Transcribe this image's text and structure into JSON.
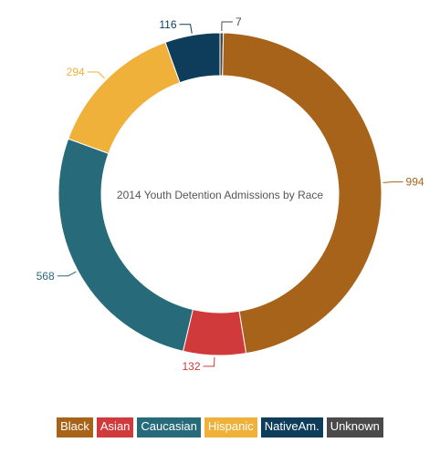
{
  "chart_data": {
    "type": "pie",
    "donut": true,
    "title": "2014 Youth Detention Admissions by Race",
    "slices": [
      {
        "label": "Unknown",
        "value": 7,
        "color": "#4a4a4a"
      },
      {
        "label": "Black",
        "value": 994,
        "color": "#a8631b"
      },
      {
        "label": "Asian",
        "value": 132,
        "color": "#d13a3a"
      },
      {
        "label": "Caucasian",
        "value": 568,
        "color": "#276a7a"
      },
      {
        "label": "Hispanic",
        "value": 294,
        "color": "#f0b13a"
      },
      {
        "label": "NativeAm.",
        "value": 116,
        "color": "#0e3d5c"
      }
    ],
    "legend": {
      "placement": "bottom",
      "items": [
        {
          "label": "Black",
          "color": "#a8631b"
        },
        {
          "label": "Asian",
          "color": "#d13a3a"
        },
        {
          "label": "Caucasian",
          "color": "#276a7a"
        },
        {
          "label": "Hispanic",
          "color": "#f0b13a"
        },
        {
          "label": "NativeAm.",
          "color": "#0e3d5c"
        },
        {
          "label": "Unknown",
          "color": "#4a4a4a"
        }
      ]
    }
  }
}
